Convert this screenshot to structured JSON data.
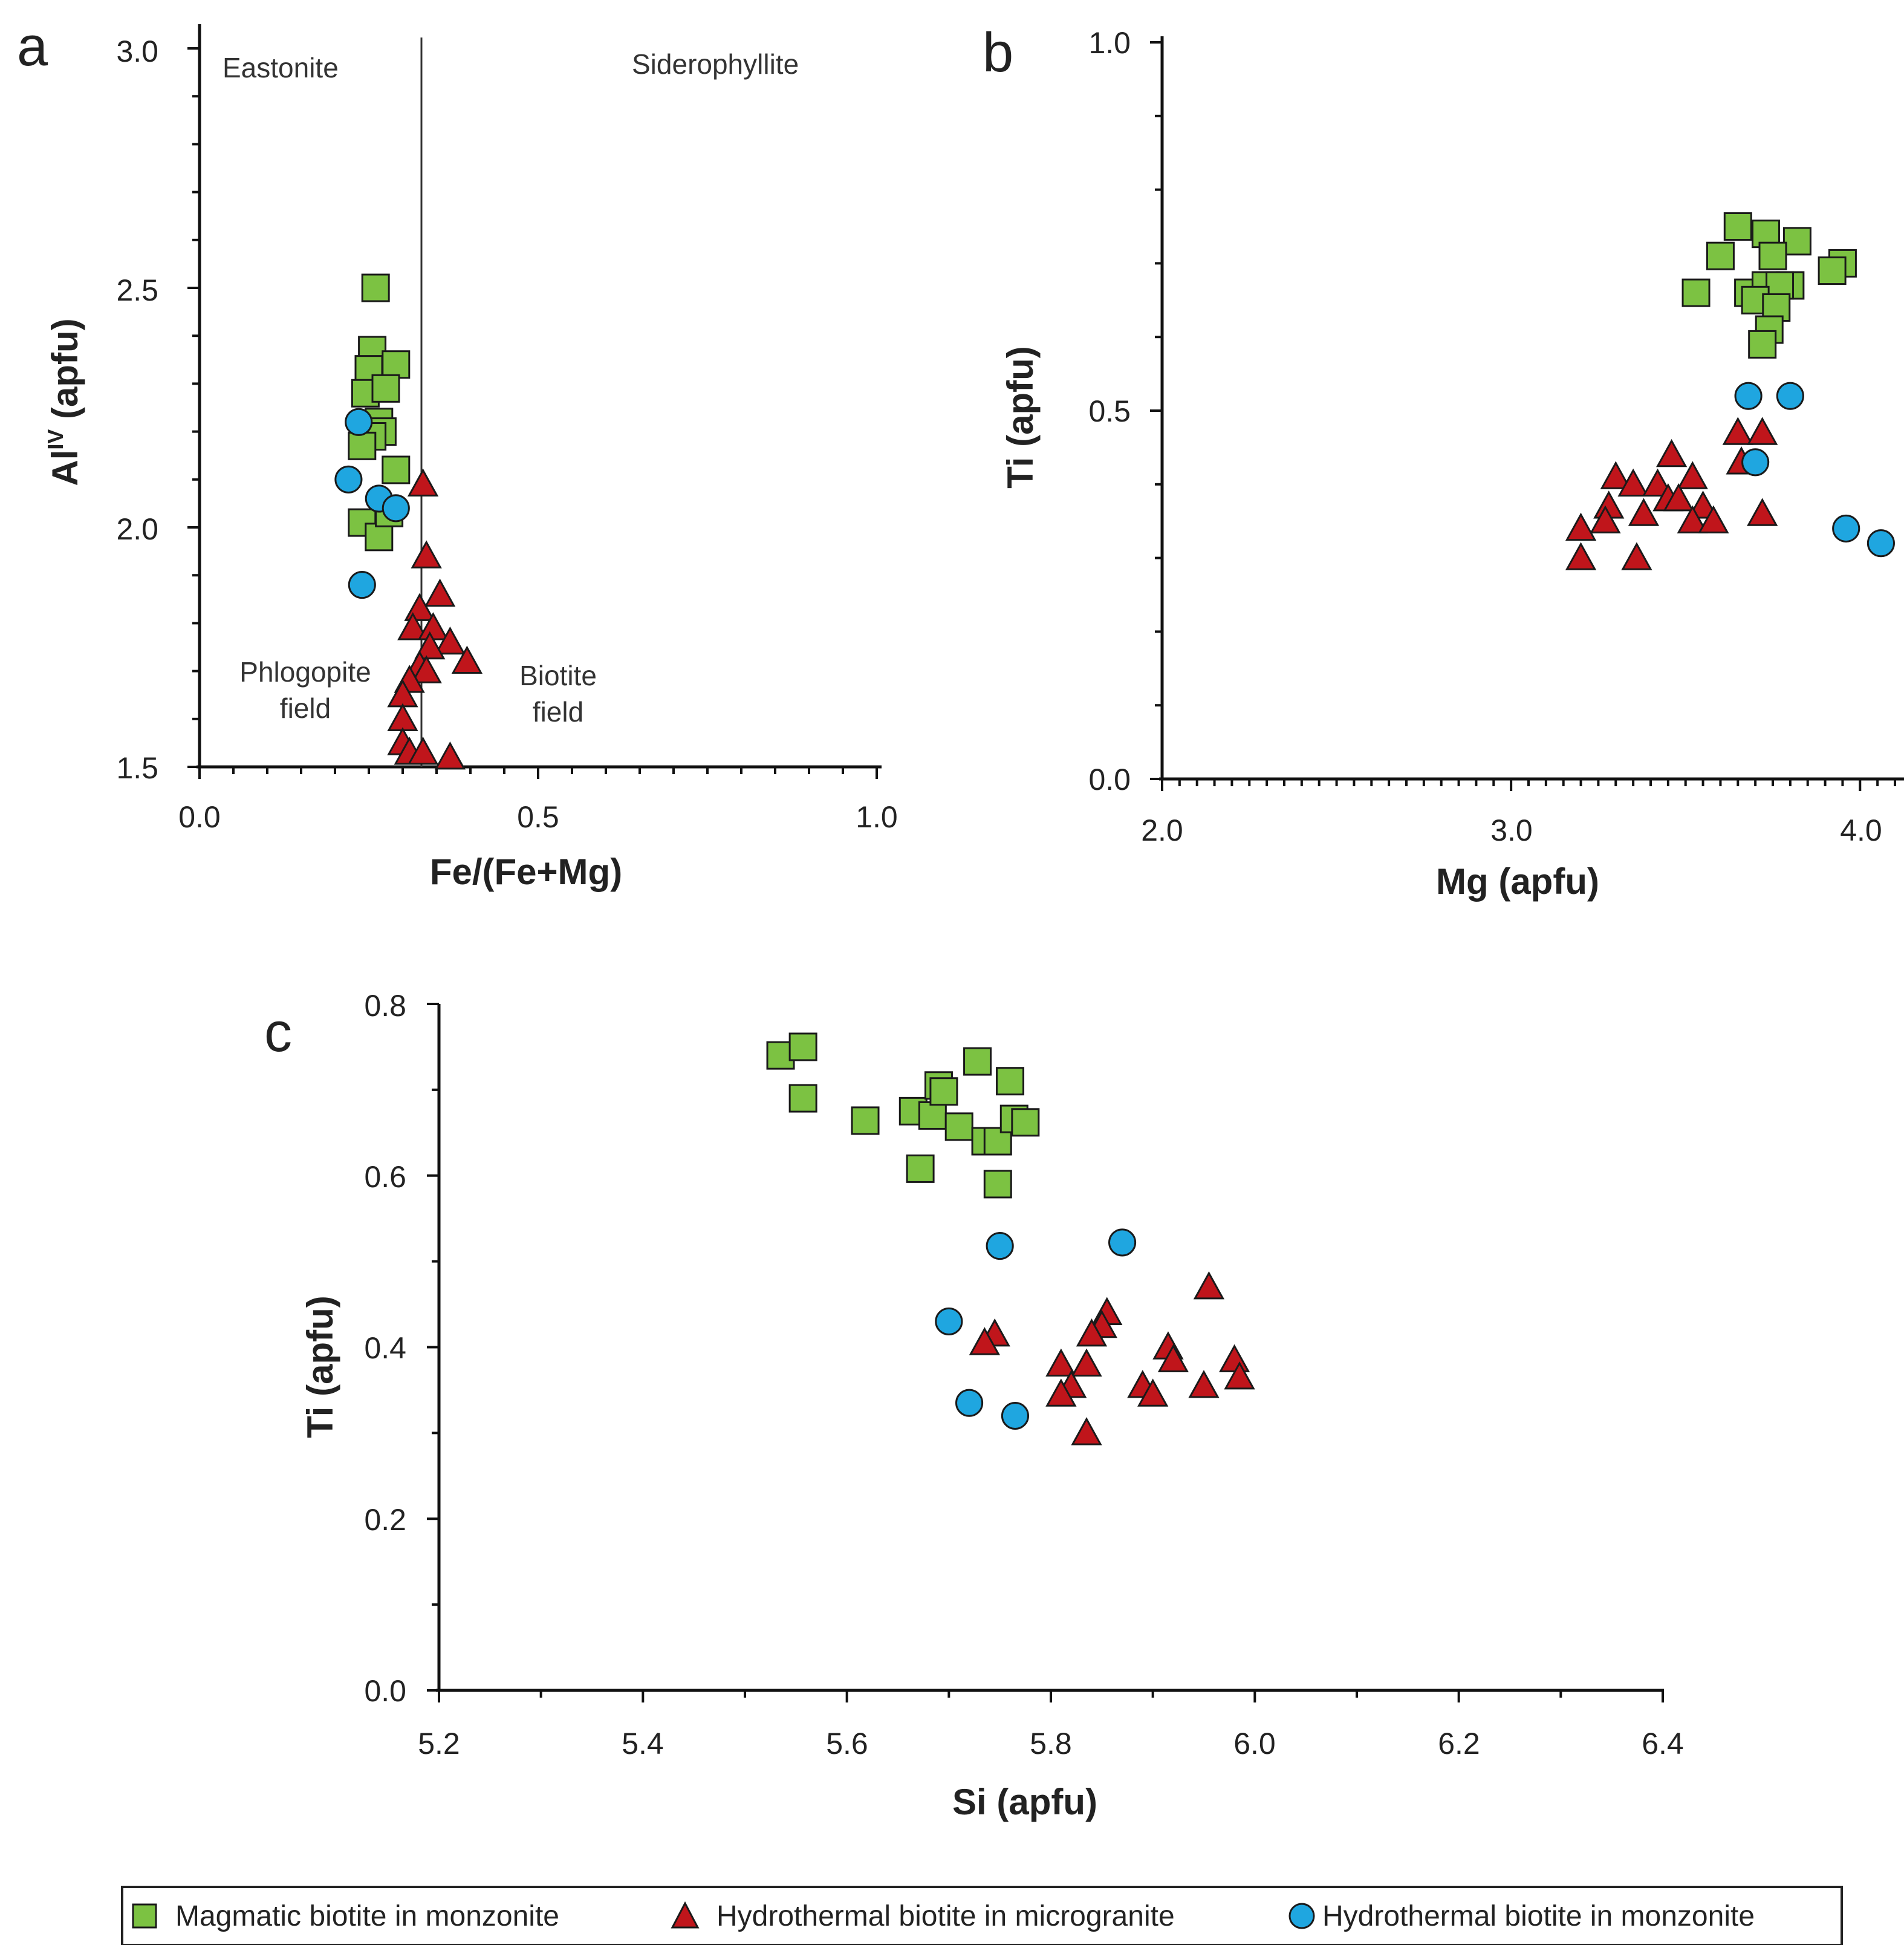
{
  "colors": {
    "magmatic": "#7cc242",
    "hydro_microgranite": "#c0151b",
    "hydro_monzonite": "#1fa6e0",
    "axis": "#111111",
    "marker_stroke": "#1a1a1a"
  },
  "legend": {
    "entries": [
      {
        "label": "Magmatic biotite in monzonite",
        "marker": "square"
      },
      {
        "label": "Hydrothermal biotite in microgranite",
        "marker": "triangle"
      },
      {
        "label": "Hydrothermal biotite in monzonite",
        "marker": "circle"
      }
    ]
  },
  "chart_data": [
    {
      "panel": "a",
      "type": "scatter",
      "xlabel": "Fe/(Fe+Mg)",
      "ylabel_main": "Al",
      "ylabel_sup": "IV",
      "ylabel_tail": " (apfu)",
      "xlim": [
        0.0,
        1.0
      ],
      "ylim": [
        1.5,
        3.0
      ],
      "xticks": [
        "0.0",
        "0.5",
        "1.0"
      ],
      "yticks": [
        "1.5",
        "2.0",
        "2.5",
        "3.0"
      ],
      "divider_x": 0.33,
      "annotations": {
        "top_left": "Eastonite",
        "top_right": "Siderophyllite",
        "bottom_left_1": "Phlogopite",
        "bottom_left_2": "field",
        "bottom_right_1": "Biotite",
        "bottom_right_2": "field"
      },
      "series": [
        {
          "name": "Magmatic biotite in monzonite",
          "marker": "square",
          "points": [
            [
              0.26,
              2.5
            ],
            [
              0.255,
              2.37
            ],
            [
              0.25,
              2.33
            ],
            [
              0.29,
              2.34
            ],
            [
              0.245,
              2.28
            ],
            [
              0.275,
              2.29
            ],
            [
              0.265,
              2.22
            ],
            [
              0.27,
              2.2
            ],
            [
              0.255,
              2.19
            ],
            [
              0.24,
              2.17
            ],
            [
              0.29,
              2.12
            ],
            [
              0.24,
              2.01
            ],
            [
              0.265,
              1.98
            ],
            [
              0.28,
              2.03
            ]
          ]
        },
        {
          "name": "Hydrothermal biotite in microgranite",
          "marker": "triangle",
          "points": [
            [
              0.33,
              2.09
            ],
            [
              0.335,
              1.94
            ],
            [
              0.355,
              1.86
            ],
            [
              0.325,
              1.83
            ],
            [
              0.315,
              1.79
            ],
            [
              0.345,
              1.79
            ],
            [
              0.37,
              1.76
            ],
            [
              0.34,
              1.75
            ],
            [
              0.395,
              1.72
            ],
            [
              0.325,
              1.71
            ],
            [
              0.335,
              1.7
            ],
            [
              0.31,
              1.68
            ],
            [
              0.3,
              1.65
            ],
            [
              0.3,
              1.6
            ],
            [
              0.3,
              1.55
            ],
            [
              0.31,
              1.53
            ],
            [
              0.33,
              1.53
            ],
            [
              0.37,
              1.52
            ]
          ]
        },
        {
          "name": "Hydrothermal biotite in monzonite",
          "marker": "circle",
          "points": [
            [
              0.235,
              2.22
            ],
            [
              0.22,
              2.1
            ],
            [
              0.265,
              2.06
            ],
            [
              0.29,
              2.04
            ],
            [
              0.24,
              1.88
            ]
          ]
        }
      ]
    },
    {
      "panel": "b",
      "type": "scatter",
      "xlabel": "Mg (apfu)",
      "ylabel": "Ti (apfu)",
      "xlim": [
        2.0,
        4.1
      ],
      "ylim": [
        0.0,
        1.0
      ],
      "xticks": [
        "2.0",
        "3.0",
        "4.0"
      ],
      "yticks": [
        "0.0",
        "0.5",
        "1.0"
      ],
      "series": [
        {
          "name": "Magmatic biotite in monzonite",
          "marker": "square",
          "points": [
            [
              3.65,
              0.75
            ],
            [
              3.73,
              0.74
            ],
            [
              3.82,
              0.73
            ],
            [
              3.6,
              0.71
            ],
            [
              3.75,
              0.71
            ],
            [
              3.95,
              0.7
            ],
            [
              3.92,
              0.69
            ],
            [
              3.53,
              0.66
            ],
            [
              3.68,
              0.66
            ],
            [
              3.73,
              0.67
            ],
            [
              3.8,
              0.67
            ],
            [
              3.77,
              0.67
            ],
            [
              3.7,
              0.65
            ],
            [
              3.76,
              0.64
            ],
            [
              3.74,
              0.61
            ],
            [
              3.72,
              0.59
            ]
          ]
        },
        {
          "name": "Hydrothermal biotite in microgranite",
          "marker": "triangle",
          "points": [
            [
              3.46,
              0.44
            ],
            [
              3.65,
              0.47
            ],
            [
              3.72,
              0.47
            ],
            [
              3.3,
              0.41
            ],
            [
              3.35,
              0.4
            ],
            [
              3.42,
              0.4
            ],
            [
              3.52,
              0.41
            ],
            [
              3.66,
              0.43
            ],
            [
              3.45,
              0.38
            ],
            [
              3.48,
              0.38
            ],
            [
              3.28,
              0.37
            ],
            [
              3.38,
              0.36
            ],
            [
              3.55,
              0.37
            ],
            [
              3.27,
              0.35
            ],
            [
              3.52,
              0.35
            ],
            [
              3.58,
              0.35
            ],
            [
              3.2,
              0.34
            ],
            [
              3.72,
              0.36
            ],
            [
              3.2,
              0.3
            ],
            [
              3.36,
              0.3
            ]
          ]
        },
        {
          "name": "Hydrothermal biotite in monzonite",
          "marker": "circle",
          "points": [
            [
              3.68,
              0.52
            ],
            [
              3.8,
              0.52
            ],
            [
              3.7,
              0.43
            ],
            [
              3.96,
              0.34
            ],
            [
              4.06,
              0.32
            ]
          ]
        }
      ]
    },
    {
      "panel": "c",
      "type": "scatter",
      "xlabel": "Si (apfu)",
      "ylabel": "Ti (apfu)",
      "xlim": [
        5.2,
        6.4
      ],
      "ylim": [
        0.0,
        0.8
      ],
      "xticks": [
        "5.2",
        "5.4",
        "5.6",
        "5.8",
        "6.0",
        "6.2",
        "6.4"
      ],
      "yticks": [
        "0.0",
        "0.2",
        "0.4",
        "0.6",
        "0.8"
      ],
      "series": [
        {
          "name": "Magmatic biotite in monzonite",
          "marker": "square",
          "points": [
            [
              5.535,
              0.74
            ],
            [
              5.557,
              0.75
            ],
            [
              5.557,
              0.69
            ],
            [
              5.618,
              0.664
            ],
            [
              5.665,
              0.675
            ],
            [
              5.672,
              0.608
            ],
            [
              5.684,
              0.67
            ],
            [
              5.69,
              0.705
            ],
            [
              5.695,
              0.698
            ],
            [
              5.71,
              0.657
            ],
            [
              5.728,
              0.733
            ],
            [
              5.736,
              0.64
            ],
            [
              5.748,
              0.64
            ],
            [
              5.76,
              0.71
            ],
            [
              5.764,
              0.666
            ],
            [
              5.775,
              0.662
            ],
            [
              5.748,
              0.59
            ]
          ]
        },
        {
          "name": "Hydrothermal biotite in microgranite",
          "marker": "triangle",
          "points": [
            [
              5.955,
              0.47
            ],
            [
              5.855,
              0.44
            ],
            [
              5.85,
              0.425
            ],
            [
              5.84,
              0.415
            ],
            [
              5.745,
              0.415
            ],
            [
              5.735,
              0.405
            ],
            [
              5.915,
              0.4
            ],
            [
              5.92,
              0.385
            ],
            [
              5.98,
              0.385
            ],
            [
              5.81,
              0.38
            ],
            [
              5.835,
              0.38
            ],
            [
              5.985,
              0.365
            ],
            [
              5.89,
              0.355
            ],
            [
              5.95,
              0.355
            ],
            [
              5.82,
              0.355
            ],
            [
              5.9,
              0.345
            ],
            [
              5.81,
              0.345
            ],
            [
              5.835,
              0.3
            ]
          ]
        },
        {
          "name": "Hydrothermal biotite in monzonite",
          "marker": "circle",
          "points": [
            [
              5.87,
              0.522
            ],
            [
              5.75,
              0.518
            ],
            [
              5.7,
              0.43
            ],
            [
              5.72,
              0.335
            ],
            [
              5.765,
              0.32
            ]
          ]
        }
      ]
    }
  ]
}
